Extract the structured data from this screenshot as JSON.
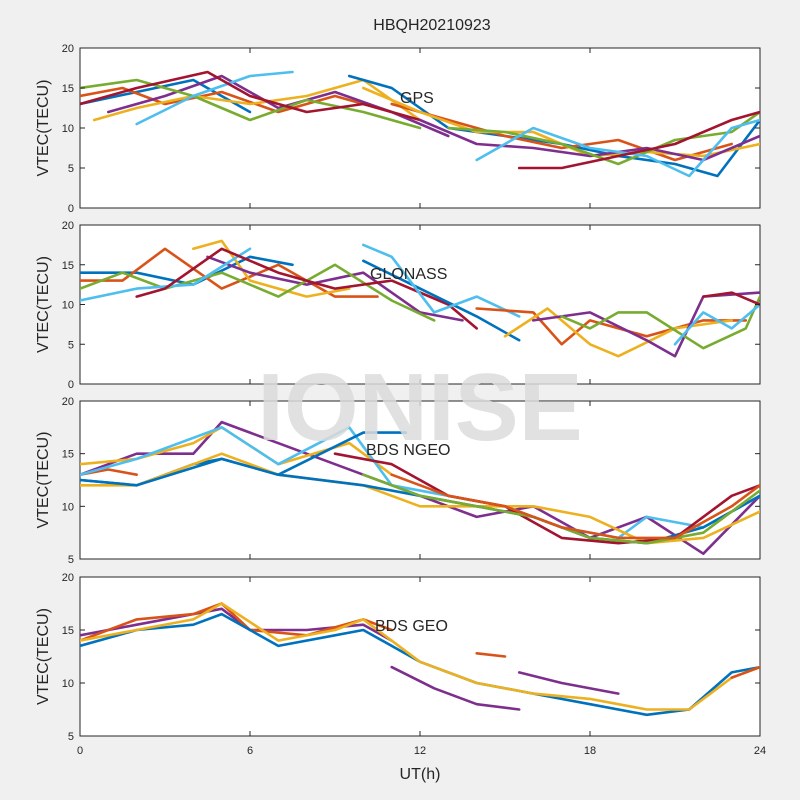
{
  "chart_data": [
    {
      "type": "line",
      "title": "HBQH20210923",
      "panel_label": "GPS",
      "ylabel": "VTEC(TECU)",
      "xlabel": "",
      "xlim": [
        0,
        24
      ],
      "ylim": [
        0,
        20
      ],
      "xticks": [
        0,
        6,
        12,
        18,
        24
      ],
      "yticks": [
        0,
        5,
        10,
        15,
        20
      ],
      "series": [
        {
          "color": "#0072BD",
          "x": [
            0,
            2,
            4,
            6
          ],
          "y": [
            13,
            14.5,
            16,
            12
          ]
        },
        {
          "color": "#D95319",
          "x": [
            0,
            1.5,
            3,
            5,
            7,
            9,
            11
          ],
          "y": [
            14,
            15,
            13,
            14.5,
            12,
            14,
            12
          ]
        },
        {
          "color": "#EDB120",
          "x": [
            0.5,
            2,
            4,
            6,
            8,
            10,
            12
          ],
          "y": [
            11,
            12.5,
            14,
            13,
            14,
            16,
            11
          ]
        },
        {
          "color": "#7E2F8E",
          "x": [
            1,
            3,
            5,
            7,
            9,
            11,
            13
          ],
          "y": [
            12,
            14,
            16.5,
            12.5,
            14.5,
            12,
            9
          ]
        },
        {
          "color": "#77AC30",
          "x": [
            0,
            2,
            4,
            6,
            8,
            10,
            12
          ],
          "y": [
            15,
            16,
            14,
            11,
            13.5,
            12,
            10
          ]
        },
        {
          "color": "#4DBEEE",
          "x": [
            2,
            4,
            6,
            7.5
          ],
          "y": [
            10.5,
            14,
            16.5,
            17
          ]
        },
        {
          "color": "#A2142F",
          "x": [
            0,
            2,
            4.5,
            6,
            8,
            10,
            12
          ],
          "y": [
            13,
            15,
            17,
            14,
            12,
            13,
            11
          ]
        },
        {
          "color": "#0072BD",
          "x": [
            9.5,
            11,
            13,
            15,
            17,
            19,
            21,
            22.5,
            24
          ],
          "y": [
            16.5,
            15,
            10,
            9,
            8,
            6.5,
            5.5,
            4,
            11
          ]
        },
        {
          "color": "#D95319",
          "x": [
            11,
            13,
            15,
            17,
            19,
            21,
            23
          ],
          "y": [
            13,
            11,
            9,
            7.5,
            8.5,
            6,
            8
          ]
        },
        {
          "color": "#EDB120",
          "x": [
            10,
            12,
            14,
            16,
            18,
            20,
            22,
            24
          ],
          "y": [
            15,
            12,
            9.5,
            9.5,
            6.5,
            7,
            6.5,
            8
          ]
        },
        {
          "color": "#7E2F8E",
          "x": [
            12,
            14,
            16,
            18,
            20,
            22,
            24
          ],
          "y": [
            11,
            8,
            7.5,
            6.5,
            7.5,
            6,
            9
          ]
        },
        {
          "color": "#77AC30",
          "x": [
            13,
            15,
            17,
            19,
            21,
            23,
            24
          ],
          "y": [
            10,
            9.5,
            8,
            5.5,
            8.5,
            9.5,
            12
          ]
        },
        {
          "color": "#4DBEEE",
          "x": [
            14,
            16,
            18,
            20,
            21.5,
            23,
            24
          ],
          "y": [
            6,
            10,
            7.5,
            6.5,
            4,
            10,
            11
          ]
        },
        {
          "color": "#A2142F",
          "x": [
            15.5,
            17,
            19,
            21,
            23,
            24
          ],
          "y": [
            5,
            5,
            6.5,
            8,
            11,
            12
          ]
        }
      ]
    },
    {
      "type": "line",
      "title": "",
      "panel_label": "GLONASS",
      "ylabel": "VTEC(TECU)",
      "xlabel": "",
      "xlim": [
        0,
        24
      ],
      "ylim": [
        0,
        20
      ],
      "xticks": [
        0,
        6,
        12,
        18,
        24
      ],
      "yticks": [
        0,
        5,
        10,
        15,
        20
      ],
      "series": [
        {
          "color": "#0072BD",
          "x": [
            0,
            2,
            4,
            6,
            7.5
          ],
          "y": [
            14,
            14,
            12.5,
            16,
            15
          ]
        },
        {
          "color": "#D95319",
          "x": [
            0,
            1.5,
            3,
            5,
            7,
            9,
            10.5
          ],
          "y": [
            13,
            13,
            17,
            12,
            15,
            11,
            11
          ]
        },
        {
          "color": "#EDB120",
          "x": [
            4,
            5,
            6,
            8,
            9.5
          ],
          "y": [
            17,
            18,
            13,
            11,
            12
          ]
        },
        {
          "color": "#7E2F8E",
          "x": [
            4.5,
            6,
            8,
            10,
            12,
            13.5
          ],
          "y": [
            16,
            14,
            12.5,
            14,
            9,
            8
          ]
        },
        {
          "color": "#77AC30",
          "x": [
            0,
            1.5,
            3,
            5,
            7,
            9,
            11,
            12.5
          ],
          "y": [
            12,
            14,
            12,
            14,
            11,
            15,
            10.5,
            8
          ]
        },
        {
          "color": "#4DBEEE",
          "x": [
            0,
            2,
            4,
            6
          ],
          "y": [
            10.5,
            12,
            12.5,
            17
          ]
        },
        {
          "color": "#A2142F",
          "x": [
            2,
            3,
            5,
            7,
            9,
            11,
            13,
            14
          ],
          "y": [
            11,
            12,
            17,
            14,
            12,
            13,
            10,
            7
          ]
        },
        {
          "color": "#0072BD",
          "x": [
            10,
            12,
            14,
            15.5
          ],
          "y": [
            15.5,
            12,
            8.5,
            5.5
          ]
        },
        {
          "color": "#4DBEEE",
          "x": [
            10,
            11,
            12.5,
            14,
            15.5
          ],
          "y": [
            17.5,
            16,
            9,
            11,
            8.5
          ]
        },
        {
          "color": "#D95319",
          "x": [
            14,
            16,
            17,
            18,
            20,
            22,
            23.5
          ],
          "y": [
            9.5,
            9,
            5,
            8,
            6,
            8,
            8
          ]
        },
        {
          "color": "#EDB120",
          "x": [
            15,
            16.5,
            18,
            19,
            21,
            23
          ],
          "y": [
            6,
            9.5,
            5,
            3.5,
            7,
            8
          ]
        },
        {
          "color": "#7E2F8E",
          "x": [
            16,
            18,
            20,
            21,
            22,
            24
          ],
          "y": [
            8,
            9,
            5.5,
            3.5,
            11,
            11.5
          ]
        },
        {
          "color": "#77AC30",
          "x": [
            17,
            18,
            19,
            20,
            22,
            23.5,
            24
          ],
          "y": [
            8.5,
            7,
            9,
            9,
            4.5,
            7,
            11
          ]
        },
        {
          "color": "#4DBEEE",
          "x": [
            21,
            22,
            23,
            24
          ],
          "y": [
            5,
            9,
            7,
            10
          ]
        },
        {
          "color": "#A2142F",
          "x": [
            22,
            23,
            24
          ],
          "y": [
            11,
            11.5,
            10
          ]
        }
      ]
    },
    {
      "type": "line",
      "title": "",
      "panel_label": "BDS NGEO",
      "ylabel": "VTEC(TECU)",
      "xlabel": "",
      "xlim": [
        0,
        24
      ],
      "ylim": [
        5,
        20
      ],
      "xticks": [
        0,
        6,
        12,
        18,
        24
      ],
      "yticks": [
        5,
        10,
        15,
        20
      ],
      "series": [
        {
          "color": "#D95319",
          "x": [
            0,
            1,
            2
          ],
          "y": [
            13,
            13.5,
            13
          ]
        },
        {
          "color": "#7E2F8E",
          "x": [
            0,
            2,
            4,
            5,
            6,
            8,
            10,
            12,
            14,
            16,
            18,
            20,
            22,
            24
          ],
          "y": [
            13,
            15,
            15,
            18,
            17,
            15,
            13,
            11,
            9,
            10,
            7,
            9,
            5.5,
            11
          ]
        },
        {
          "color": "#EDB120",
          "x": [
            0,
            2,
            4,
            5,
            7,
            9.5,
            11
          ],
          "y": [
            14,
            14.5,
            16,
            17.5,
            14,
            16,
            13
          ]
        },
        {
          "color": "#4DBEEE",
          "x": [
            0,
            2,
            5,
            7,
            9.5,
            11,
            13,
            15,
            17,
            19,
            20,
            22,
            24
          ],
          "y": [
            13,
            14.5,
            17.5,
            14,
            17.5,
            12,
            11,
            10,
            8,
            7,
            9,
            8,
            11
          ]
        },
        {
          "color": "#0072BD",
          "x": [
            0,
            2,
            4,
            5,
            7,
            10,
            11.5
          ],
          "y": [
            12.5,
            12,
            14,
            14.5,
            13,
            17,
            17
          ]
        },
        {
          "color": "#EDB120",
          "x": [
            0,
            2,
            5,
            7,
            10,
            12,
            14,
            16,
            18,
            20,
            22,
            24
          ],
          "y": [
            12,
            12,
            15,
            13,
            12,
            10,
            10,
            10,
            9,
            6.5,
            7,
            9.5
          ]
        },
        {
          "color": "#0072BD",
          "x": [
            0,
            2,
            5,
            7,
            10,
            12,
            14,
            16,
            18,
            20,
            22,
            24
          ],
          "y": [
            12.5,
            12,
            14.5,
            13,
            12,
            11,
            10,
            9,
            7,
            6.5,
            8,
            11
          ]
        },
        {
          "color": "#A2142F",
          "x": [
            9,
            11,
            13,
            15,
            17,
            19,
            21,
            23,
            24
          ],
          "y": [
            15,
            14,
            11,
            10,
            7,
            6.5,
            7,
            11,
            12
          ]
        },
        {
          "color": "#77AC30",
          "x": [
            10,
            12,
            14,
            16,
            18,
            20,
            22,
            24
          ],
          "y": [
            13,
            11,
            10,
            9,
            7,
            6.5,
            7.5,
            11.5
          ]
        },
        {
          "color": "#D95319",
          "x": [
            11,
            13,
            15,
            17,
            19,
            21,
            23,
            24
          ],
          "y": [
            13,
            11,
            10,
            8,
            7,
            7,
            10,
            12
          ]
        }
      ]
    },
    {
      "type": "line",
      "title": "",
      "panel_label": "BDS GEO",
      "ylabel": "VTEC(TECU)",
      "xlabel": "UT(h)",
      "xlim": [
        0,
        24
      ],
      "ylim": [
        5,
        20
      ],
      "xticks": [
        0,
        6,
        12,
        18,
        24
      ],
      "xticklabels": [
        "0",
        "6",
        "12",
        "18",
        "24"
      ],
      "yticks": [
        5,
        10,
        15,
        20
      ],
      "series": [
        {
          "color": "#7E2F8E",
          "x": [
            0,
            2,
            4,
            5,
            6,
            8,
            10,
            11
          ],
          "y": [
            14.5,
            15.5,
            16.5,
            17,
            15,
            15,
            15.5,
            14
          ]
        },
        {
          "color": "#D95319",
          "x": [
            0,
            2,
            4,
            5,
            6,
            8,
            10,
            11
          ],
          "y": [
            14,
            16,
            16.5,
            17.5,
            15,
            14.5,
            16,
            15
          ]
        },
        {
          "color": "#0072BD",
          "x": [
            0,
            2,
            4,
            5,
            7,
            9,
            10,
            12,
            14,
            16,
            18,
            20,
            21.5,
            23,
            24
          ],
          "y": [
            13.5,
            15,
            15.5,
            16.5,
            13.5,
            14.5,
            15,
            12,
            10,
            9,
            8,
            7,
            7.5,
            11,
            11.5
          ]
        },
        {
          "color": "#EDB120",
          "x": [
            0,
            2,
            4,
            5,
            7,
            9,
            10,
            12,
            14,
            16,
            18,
            20,
            21.5,
            23,
            24
          ],
          "y": [
            14,
            15,
            16,
            17.5,
            14,
            15,
            16,
            12,
            10,
            9,
            8.5,
            7.5,
            7.5,
            10.5,
            11.5
          ]
        },
        {
          "color": "#7E2F8E",
          "x": [
            11,
            12.5,
            14,
            15.5
          ],
          "y": [
            11.5,
            9.5,
            8,
            7.5
          ]
        },
        {
          "color": "#7E2F8E",
          "x": [
            15.5,
            17,
            19
          ],
          "y": [
            11,
            10,
            9
          ]
        },
        {
          "color": "#D95319",
          "x": [
            14,
            15
          ],
          "y": [
            12.8,
            12.5
          ]
        },
        {
          "color": "#D95319",
          "x": [
            23,
            24
          ],
          "y": [
            10.5,
            11.5
          ]
        }
      ]
    }
  ],
  "watermark": "IONISE"
}
